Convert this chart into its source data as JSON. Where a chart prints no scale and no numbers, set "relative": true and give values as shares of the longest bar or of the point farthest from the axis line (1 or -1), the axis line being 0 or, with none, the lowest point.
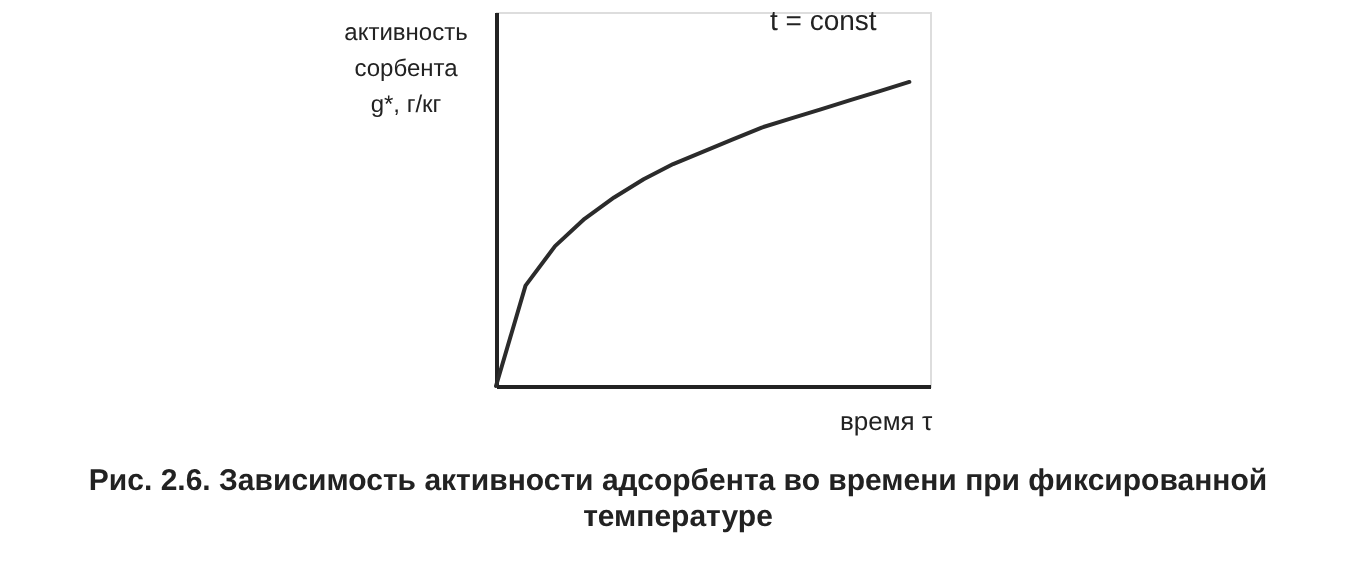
{
  "chart_data": {
    "type": "line",
    "relative": true,
    "grid": false,
    "marker": "none",
    "line_style": "solid",
    "xlabel": "время τ",
    "ylabel": "активность сорбента g*, г/кг",
    "categories": [
      null,
      null,
      null,
      null,
      null,
      null,
      null,
      null,
      null,
      null,
      null,
      null,
      null,
      null,
      null
    ],
    "series": [
      {
        "color": "#2b2b2b",
        "values": [
          0,
          0.33,
          0.46,
          0.55,
          0.62,
          0.68,
          0.73,
          0.77,
          0.81,
          0.85,
          0.88,
          0.91,
          0.94,
          0.97,
          1
        ]
      }
    ],
    "annotations": [
      "t = const",
      "Рис. 2.6. Зависимость активности адсорбента во времени при фиксированной температуре"
    ]
  }
}
